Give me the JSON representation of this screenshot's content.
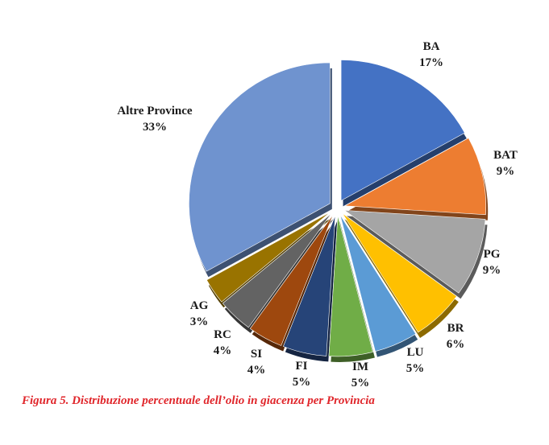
{
  "chart_data": {
    "type": "pie",
    "title": "",
    "slices": [
      {
        "label": "BA",
        "value": 17,
        "pct_label": "17%",
        "color": "#4472c4"
      },
      {
        "label": "BAT",
        "value": 9,
        "pct_label": "9%",
        "color": "#ed7d31"
      },
      {
        "label": "PG",
        "value": 9,
        "pct_label": "9%",
        "color": "#a5a5a5"
      },
      {
        "label": "BR",
        "value": 6,
        "pct_label": "6%",
        "color": "#ffc000"
      },
      {
        "label": "LU",
        "value": 5,
        "pct_label": "5%",
        "color": "#5b9bd5"
      },
      {
        "label": "IM",
        "value": 5,
        "pct_label": "5%",
        "color": "#70ad47"
      },
      {
        "label": "FI",
        "value": 5,
        "pct_label": "5%",
        "color": "#264478"
      },
      {
        "label": "SI",
        "value": 4,
        "pct_label": "4%",
        "color": "#9e480e"
      },
      {
        "label": "RC",
        "value": 4,
        "pct_label": "4%",
        "color": "#636363"
      },
      {
        "label": "AG",
        "value": 3,
        "pct_label": "3%",
        "color": "#997300"
      },
      {
        "label": "Altre Province",
        "value": 33,
        "pct_label": "33%",
        "color": "#6f93cf"
      }
    ]
  },
  "caption": "Figura 5. Distribuzione percentuale dell’olio in giacenza per Provincia"
}
